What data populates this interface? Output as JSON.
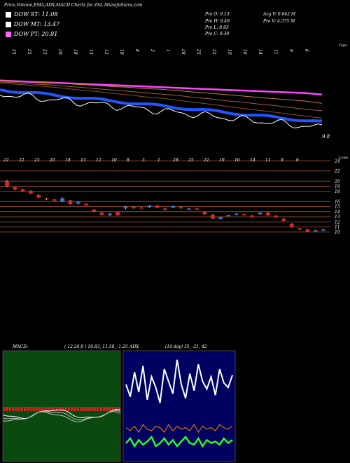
{
  "header": {
    "title": "Price,Volume,EMA,ADX,MACD Charts for ZSL",
    "site": "MunafaSutra.com"
  },
  "legend": [
    {
      "label": "DOW ST: 11.08",
      "color": "#ffffff"
    },
    {
      "label": "DOW MT: 13.47",
      "color": "#ffffff"
    },
    {
      "label": "DOW PT: 20.81",
      "color": "#ff66ff"
    }
  ],
  "stats": {
    "open": "Pre   O: 9.13",
    "high": "Pre   H: 9.49",
    "low": "Pre   L: 8.93",
    "close": "Pre   C: 9.30",
    "avg_vol": "Avg V: 0.642  M",
    "pre_vol": "Pre   V: 4.375  M"
  },
  "colors": {
    "grid": "#8b4a1e",
    "up": "#3a6bd8",
    "down": "#e02020",
    "ema_long": "#ff44ff",
    "ema_mid": "#c08040",
    "ema_short": "#2255ff",
    "macd_bg": "#0a4a10",
    "adx_bg": "#000060",
    "adx_green": "#22ff22",
    "adx_orange": "#ff8800"
  },
  "ema_panel": {
    "top_dates": [
      "25",
      "25",
      "23",
      "20",
      "18",
      "15",
      "12",
      "10",
      "8",
      "3",
      "1",
      "28",
      "25",
      "22",
      "19",
      "16",
      "14",
      "11",
      "9",
      "6"
    ],
    "right_label": "Tops",
    "last_value": "9.8"
  },
  "price_panel": {
    "top_dates": [
      "22",
      "22",
      "25",
      "20",
      "18",
      "15",
      "12",
      "10",
      "8",
      "5",
      "1",
      "28",
      "25",
      "22",
      "19",
      "16",
      "14",
      "11",
      "9",
      "6"
    ],
    "right_label": "Lows",
    "levels": [
      24,
      22,
      20,
      19,
      18,
      16,
      15,
      14,
      13,
      12,
      11,
      10
    ],
    "level_labels": [
      "24",
      "22",
      "20",
      "19",
      "18",
      "16",
      "15",
      "14",
      "13",
      "12",
      "11",
      "10"
    ]
  },
  "macd": {
    "label": "MACD:",
    "params": "( 12,26,9 ) 10.83, 11.58, -1.25"
  },
  "adx": {
    "label": "ADX",
    "params": "(14 day) 35, -21, 42"
  },
  "chart_data": [
    {
      "type": "candlestick",
      "ylim": [
        9,
        25
      ],
      "candles": [
        {
          "o": 20.0,
          "c": 19.0,
          "h": 20.2,
          "l": 18.8
        },
        {
          "o": 18.8,
          "c": 18.4,
          "h": 18.9,
          "l": 18.2
        },
        {
          "o": 18.4,
          "c": 18.0,
          "h": 18.5,
          "l": 17.9
        },
        {
          "o": 18.1,
          "c": 17.6,
          "h": 18.2,
          "l": 17.5
        },
        {
          "o": 17.3,
          "c": 16.8,
          "h": 17.4,
          "l": 16.7
        },
        {
          "o": 16.6,
          "c": 16.4,
          "h": 16.7,
          "l": 16.3
        },
        {
          "o": 16.4,
          "c": 16.2,
          "h": 16.5,
          "l": 16.1
        },
        {
          "o": 16.0,
          "c": 16.6,
          "h": 16.8,
          "l": 15.9
        },
        {
          "o": 16.2,
          "c": 15.5,
          "h": 16.3,
          "l": 15.4
        },
        {
          "o": 15.6,
          "c": 15.9,
          "h": 16.0,
          "l": 15.4
        },
        {
          "o": 15.5,
          "c": 15.4,
          "h": 15.6,
          "l": 15.3
        },
        {
          "o": 14.4,
          "c": 14.0,
          "h": 14.5,
          "l": 13.9
        },
        {
          "o": 13.8,
          "c": 13.4,
          "h": 13.9,
          "l": 13.3
        },
        {
          "o": 13.3,
          "c": 13.6,
          "h": 13.7,
          "l": 13.2
        },
        {
          "o": 13.9,
          "c": 13.3,
          "h": 14.0,
          "l": 13.2
        },
        {
          "o": 14.7,
          "c": 15.0,
          "h": 15.1,
          "l": 14.5
        },
        {
          "o": 14.9,
          "c": 14.7,
          "h": 15.0,
          "l": 14.6
        },
        {
          "o": 14.8,
          "c": 14.7,
          "h": 14.9,
          "l": 14.6
        },
        {
          "o": 14.9,
          "c": 15.2,
          "h": 15.3,
          "l": 14.8
        },
        {
          "o": 15.2,
          "c": 14.8,
          "h": 15.3,
          "l": 14.7
        },
        {
          "o": 14.6,
          "c": 14.4,
          "h": 14.7,
          "l": 14.3
        },
        {
          "o": 14.8,
          "c": 15.1,
          "h": 15.2,
          "l": 14.7
        },
        {
          "o": 14.9,
          "c": 14.7,
          "h": 15.0,
          "l": 14.6
        },
        {
          "o": 14.6,
          "c": 14.6,
          "h": 14.7,
          "l": 14.5
        },
        {
          "o": 14.6,
          "c": 14.5,
          "h": 14.7,
          "l": 14.4
        },
        {
          "o": 13.9,
          "c": 13.5,
          "h": 14.0,
          "l": 13.4
        },
        {
          "o": 13.4,
          "c": 12.7,
          "h": 13.5,
          "l": 12.6
        },
        {
          "o": 12.6,
          "c": 12.9,
          "h": 13.0,
          "l": 12.5
        },
        {
          "o": 13.3,
          "c": 13.3,
          "h": 13.4,
          "l": 13.2
        },
        {
          "o": 13.4,
          "c": 13.6,
          "h": 13.7,
          "l": 13.3
        },
        {
          "o": 13.5,
          "c": 13.4,
          "h": 13.6,
          "l": 13.3
        },
        {
          "o": 13.2,
          "c": 13.0,
          "h": 13.3,
          "l": 12.9
        },
        {
          "o": 13.5,
          "c": 13.8,
          "h": 13.9,
          "l": 13.4
        },
        {
          "o": 13.8,
          "c": 13.3,
          "h": 13.9,
          "l": 13.2
        },
        {
          "o": 13.2,
          "c": 12.9,
          "h": 13.3,
          "l": 12.8
        },
        {
          "o": 12.6,
          "c": 12.2,
          "h": 12.7,
          "l": 12.1
        },
        {
          "o": 11.6,
          "c": 11.0,
          "h": 11.7,
          "l": 10.9
        },
        {
          "o": 10.7,
          "c": 10.5,
          "h": 10.8,
          "l": 10.4
        },
        {
          "o": 10.5,
          "c": 10.1,
          "h": 10.6,
          "l": 10.0
        },
        {
          "o": 10.3,
          "c": 10.3,
          "h": 10.4,
          "l": 10.2
        },
        {
          "o": 10.3,
          "c": 10.5,
          "h": 10.6,
          "l": 10.2
        }
      ]
    },
    {
      "type": "line",
      "name_hint": "ema",
      "x": [
        0,
        1,
        2,
        3,
        4,
        5,
        6,
        7,
        8,
        9,
        10,
        11,
        12,
        13,
        14,
        15,
        16,
        17,
        18,
        19,
        20
      ],
      "series": [
        {
          "values": [
            31,
            32,
            33,
            34,
            35,
            36,
            37,
            38,
            39,
            40,
            41,
            42,
            43,
            44,
            45,
            46,
            47,
            48,
            49,
            50,
            52
          ]
        },
        {
          "values": [
            28,
            29,
            30,
            31,
            32,
            34,
            35,
            37,
            38,
            40,
            41,
            43,
            45,
            47,
            49,
            51,
            53,
            55,
            57,
            59,
            62
          ]
        },
        {
          "values": [
            27,
            28,
            30,
            31,
            33,
            35,
            37,
            39,
            41,
            43,
            45,
            47,
            50,
            52,
            55,
            57,
            60,
            62,
            65,
            68,
            70
          ]
        },
        {
          "values": [
            26,
            27,
            29,
            31,
            33,
            36,
            38,
            41,
            43,
            46,
            48,
            51,
            54,
            57,
            60,
            63,
            66,
            69,
            72,
            75,
            78
          ]
        }
      ]
    },
    {
      "type": "bar",
      "name_hint": "macd",
      "values": [
        6,
        6,
        6,
        6,
        6,
        6,
        6,
        6,
        6,
        6,
        6,
        6,
        6,
        6,
        6,
        6,
        6,
        6,
        6,
        6,
        6,
        6,
        6,
        6,
        6,
        6,
        6,
        6,
        6,
        6,
        6,
        6,
        6,
        6,
        6,
        6,
        6,
        6,
        6,
        6
      ]
    },
    {
      "type": "line",
      "name_hint": "adx",
      "series": [
        {
          "values": [
            50,
            42,
            58,
            45,
            62,
            40,
            55,
            48,
            38,
            60,
            52,
            44,
            66,
            50,
            41,
            57,
            46,
            63,
            52,
            47,
            55,
            43,
            60,
            51,
            48,
            56
          ]
        },
        {
          "values": [
            22,
            20,
            23,
            19,
            24,
            21,
            20,
            23,
            22,
            19,
            24,
            20,
            23,
            21,
            22,
            20,
            24,
            19,
            23,
            21,
            22,
            20,
            24,
            22,
            21,
            23
          ]
        },
        {
          "values": [
            12,
            15,
            10,
            14,
            11,
            13,
            16,
            10,
            12,
            15,
            11,
            14,
            10,
            13,
            16,
            12,
            11,
            15,
            10,
            14,
            12,
            13,
            11,
            15,
            12,
            14
          ]
        }
      ]
    }
  ]
}
